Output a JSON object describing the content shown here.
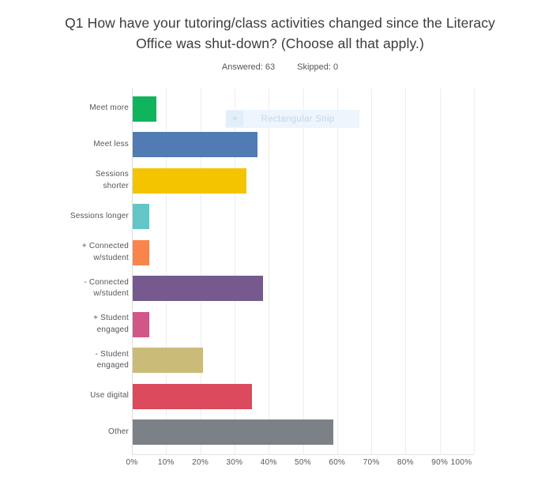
{
  "header": {
    "title": "Q1 How have your tutoring/class activities changed since the Literacy Office was shut-down? (Choose all that apply.)",
    "title_lines": [
      "Q1 How have your tutoring/class activities changed since the Literacy",
      "Office was shut-down? (Choose all that apply.)"
    ],
    "answered_label": "Answered: 63",
    "skipped_label": "Skipped: 0",
    "answered_count": 63,
    "skipped_count": 0
  },
  "overlay": {
    "snip_label": "Rectangular Snip",
    "snip_icon": "rectangular-snip-icon"
  },
  "chart_data": {
    "type": "bar",
    "orientation": "horizontal",
    "title": "Q1 How have your tutoring/class activities changed since the Literacy Office was shut-down? (Choose all that apply.)",
    "xlabel": "",
    "ylabel": "",
    "grid": true,
    "xlim": [
      0,
      100
    ],
    "x_ticks": [
      "0%",
      "10%",
      "20%",
      "30%",
      "40%",
      "50%",
      "60%",
      "70%",
      "80%",
      "90%",
      "100%"
    ],
    "categories": [
      "Meet more",
      "Meet less",
      "Sessions\nshorter",
      "Sessions longer",
      "+ Connected\nw/student",
      "- Connected\nw/student",
      "+ Student\nengaged",
      "- Student\nengaged",
      "Use digital",
      "Other"
    ],
    "values": [
      7,
      36.5,
      33.3,
      4.8,
      4.8,
      38,
      4.8,
      20.6,
      34.9,
      58.7
    ],
    "value_unit": "%",
    "bar_colors": [
      "#10b45c",
      "#507cb3",
      "#f5c400",
      "#64c5c7",
      "#f9854d",
      "#765a8e",
      "#d05788",
      "#cabb79",
      "#db4a5d",
      "#7c8187"
    ]
  }
}
